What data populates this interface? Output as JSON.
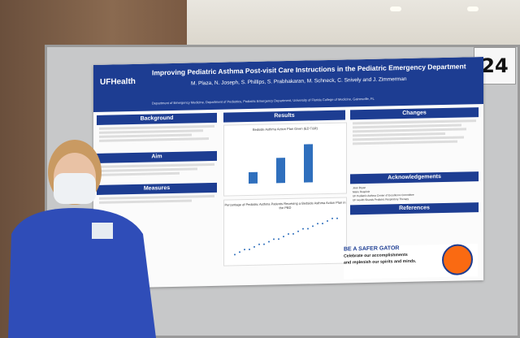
{
  "poster_title": "Improving Pediatric Asthma Post-visit Care Instructions in the Pediatric Emergency Department",
  "authors": "M. Plaza, N. Joseph, S. Phillips, S. Prabhakaran, M. Schneck, C. Snively and J. Zimmerman",
  "affiliations": "Department of Emergency Medicine, Department of Pediatrics, Pediatric Emergency Department, University of Florida College of Medicine, Gainesville, FL",
  "logo": "UFHealth",
  "board_number": "24",
  "sections": {
    "background": "Background",
    "aim": "Aim",
    "measures": "Measures",
    "results": "Results",
    "changes": "Changes",
    "acknowledgements": "Acknowledgements",
    "references": "References"
  },
  "results": {
    "chart1_title": "Bedside Asthma Action Plan Given (ED T&R)",
    "chart2_title": "Percentage of Pediatric Asthma Patients Receiving a Bedside Asthma Action Plan in the PED"
  },
  "acknowledgements": [
    "Jean Bryan",
    "Marie Respinie",
    "UF Pediatric Asthma Center of Excellence Committee",
    "UF Health Shands Pediatric Respiratory Therapy"
  ],
  "gator": {
    "headline": "BE A SAFER GATOR",
    "line1": "Celebrate our accomplishments",
    "line2": "and replenish our spirits and minds."
  },
  "chart_data": {
    "type": "bar",
    "categories": [
      "",
      "",
      ""
    ],
    "values": [
      16,
      36,
      55
    ],
    "ylim": [
      0,
      65
    ]
  },
  "colors": {
    "poster_blue": "#1d3d92",
    "bar_blue": "#2f6fbd",
    "badge_orange": "#fa6a12"
  }
}
